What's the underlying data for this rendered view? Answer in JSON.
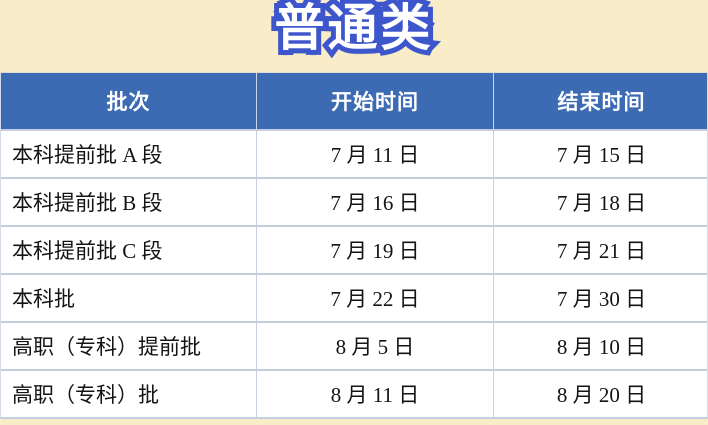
{
  "page": {
    "title": "普通类"
  },
  "colors": {
    "background": "#F9ECC9",
    "title_fill": "#FFFFFF",
    "title_outline": "#3D56CB",
    "header_background": "#3C6BB3",
    "header_text": "#FFFFFF",
    "row_background": "#FFFFFF",
    "grid_line": "#C4CEDF",
    "cell_text": "#141414"
  },
  "table": {
    "headers": [
      "批次",
      "开始时间",
      "结束时间"
    ],
    "rows": [
      {
        "batch": "本科提前批 A 段",
        "start": "7 月 11 日",
        "end": "7 月 15 日"
      },
      {
        "batch": "本科提前批 B 段",
        "start": "7 月 16 日",
        "end": "7 月 18 日"
      },
      {
        "batch": "本科提前批 C 段",
        "start": "7 月 19 日",
        "end": "7 月 21 日"
      },
      {
        "batch": "本科批",
        "start": "7 月 22 日",
        "end": "7 月 30 日"
      },
      {
        "batch": "高职（专科）提前批",
        "start": "8 月 5 日",
        "end": "8 月 10 日"
      },
      {
        "batch": "高职（专科）批",
        "start": "8 月 11 日",
        "end": "8 月 20 日"
      }
    ]
  },
  "chart_data": {
    "type": "table",
    "title": "普通类",
    "columns": [
      "批次",
      "开始时间",
      "结束时间"
    ],
    "rows": [
      [
        "本科提前批 A 段",
        "7 月 11 日",
        "7 月 15 日"
      ],
      [
        "本科提前批 B 段",
        "7 月 16 日",
        "7 月 18 日"
      ],
      [
        "本科提前批 C 段",
        "7 月 19 日",
        "7 月 21 日"
      ],
      [
        "本科批",
        "7 月 22 日",
        "7 月 30 日"
      ],
      [
        "高职（专科）提前批",
        "8 月 5 日",
        "8 月 10 日"
      ],
      [
        "高职（专科）批",
        "8 月 11 日",
        "8 月 20 日"
      ]
    ]
  }
}
